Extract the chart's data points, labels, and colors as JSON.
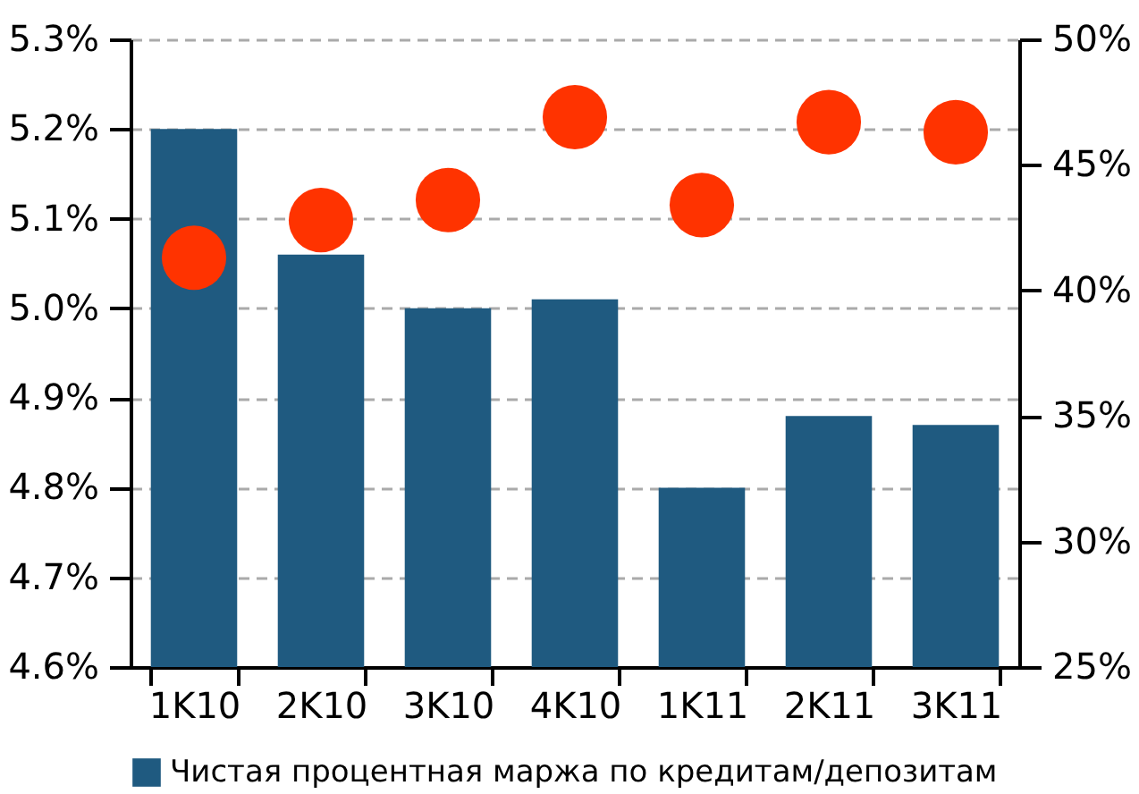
{
  "chart_data": {
    "type": "bar",
    "categories": [
      "1K10",
      "2K10",
      "3K10",
      "4K10",
      "1K11",
      "2K11",
      "3K11"
    ],
    "series": [
      {
        "name": "Чистая процентная маржа по кредитам/депозитам",
        "color": "#1f5a80",
        "values": [
          5.2,
          5.06,
          5.0,
          5.01,
          4.8,
          4.88,
          4.87
        ]
      },
      {
        "type": "scatter",
        "axis": "y2",
        "color": "#ff3300",
        "marker": "circle",
        "values": [
          41.3,
          42.8,
          43.6,
          46.9,
          43.4,
          46.7,
          46.3
        ]
      }
    ],
    "ylim": [
      4.6,
      5.3
    ],
    "yticks": [
      {
        "value": 4.6,
        "label": "4.6%"
      },
      {
        "value": 4.7,
        "label": "4.7%"
      },
      {
        "value": 4.8,
        "label": "4.8%"
      },
      {
        "value": 4.9,
        "label": "4.9%"
      },
      {
        "value": 5.0,
        "label": "5.0%"
      },
      {
        "value": 5.1,
        "label": "5.1%"
      },
      {
        "value": 5.2,
        "label": "5.2%"
      },
      {
        "value": 5.3,
        "label": "5.3%"
      }
    ],
    "y2lim": [
      25,
      50
    ],
    "y2ticks": [
      {
        "value": 25,
        "label": "25%"
      },
      {
        "value": 30,
        "label": "30%"
      },
      {
        "value": 35,
        "label": "35%"
      },
      {
        "value": 40,
        "label": "40%"
      },
      {
        "value": 45,
        "label": "45%"
      },
      {
        "value": 50,
        "label": "50%"
      }
    ],
    "grid": "y",
    "legend": "bottom"
  }
}
